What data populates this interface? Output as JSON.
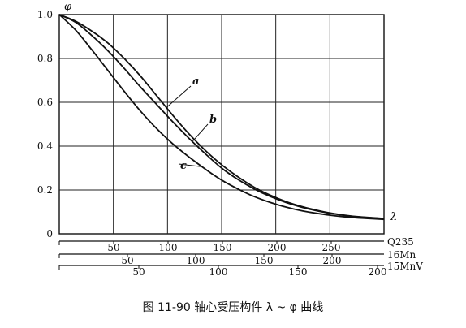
{
  "chart_data": {
    "type": "line",
    "title": "",
    "ylabel": "φ",
    "xlabel": "λ",
    "ylim": [
      0,
      1.0
    ],
    "yticks": [
      0,
      0.2,
      0.4,
      0.6,
      0.8,
      1.0
    ],
    "ytick_labels": [
      "0",
      "0.2",
      "0.4",
      "0.6",
      "0.8",
      "1.0"
    ],
    "xlim": [
      0,
      100
    ],
    "grid": true,
    "series": [
      {
        "name": "a",
        "x": [
          0,
          5,
          10,
          15,
          20,
          25,
          30,
          35,
          40,
          45,
          50,
          55,
          60,
          65,
          70,
          75,
          80,
          85,
          90,
          95,
          100
        ],
        "y": [
          1.0,
          0.97,
          0.925,
          0.87,
          0.8,
          0.72,
          0.63,
          0.54,
          0.455,
          0.38,
          0.315,
          0.26,
          0.213,
          0.176,
          0.146,
          0.123,
          0.105,
          0.091,
          0.081,
          0.075,
          0.07
        ]
      },
      {
        "name": "b",
        "x": [
          0,
          5,
          10,
          15,
          20,
          25,
          30,
          35,
          40,
          45,
          50,
          55,
          60,
          65,
          70,
          75,
          80,
          85,
          90,
          95,
          100
        ],
        "y": [
          1.0,
          0.965,
          0.905,
          0.835,
          0.755,
          0.67,
          0.59,
          0.51,
          0.435,
          0.365,
          0.3,
          0.248,
          0.205,
          0.17,
          0.142,
          0.12,
          0.103,
          0.09,
          0.08,
          0.074,
          0.069
        ]
      },
      {
        "name": "c",
        "x": [
          0,
          5,
          10,
          15,
          20,
          25,
          30,
          35,
          40,
          45,
          50,
          55,
          60,
          65,
          70,
          75,
          80,
          85,
          90,
          95,
          100
        ],
        "y": [
          1.0,
          0.93,
          0.84,
          0.745,
          0.65,
          0.56,
          0.48,
          0.41,
          0.35,
          0.295,
          0.245,
          0.205,
          0.17,
          0.143,
          0.121,
          0.104,
          0.092,
          0.082,
          0.075,
          0.07,
          0.066
        ]
      }
    ],
    "lambda_axis_label": "λ",
    "lambda_scales": [
      {
        "name": "Q235",
        "tick_labels": [
          "50",
          "100",
          "150",
          "200",
          "250"
        ]
      },
      {
        "name": "16Mn",
        "tick_labels": [
          "50",
          "100",
          "150",
          "200"
        ]
      },
      {
        "name": "15MnV",
        "tick_labels": [
          "50",
          "100",
          "150",
          "200"
        ]
      }
    ]
  },
  "caption": "图 11-90   轴心受压构件 λ ~ φ 曲线"
}
